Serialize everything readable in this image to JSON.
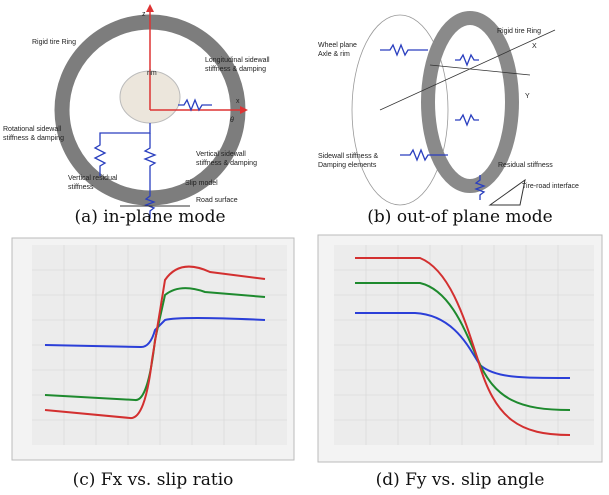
{
  "panels": [
    {
      "caption": "(a) in-plane mode",
      "labels": [
        [
          "z"
        ],
        [
          "x"
        ],
        [
          "θ"
        ],
        [
          "Rigid tire Ring"
        ],
        [
          "rim"
        ],
        [
          "Longitudinal sidewall",
          "stiffness & damping"
        ],
        [
          "Rotational sidewall",
          "stiffness & damping"
        ],
        [
          "Vertical sidewall",
          "stiffness & damping"
        ],
        [
          "Vertical residual",
          "stiffness"
        ],
        [
          "Slip model"
        ],
        [
          "Road surface"
        ]
      ]
    },
    {
      "caption": "(b) out-of plane mode",
      "labels": [
        [
          "Wheel plane",
          "Axle & rim"
        ],
        [
          "Rigid tire Ring"
        ],
        [
          "X"
        ],
        [
          "Y"
        ],
        [
          "Sidewall stiffness &",
          "Damping elements"
        ],
        [
          "Residual stiffness"
        ],
        [
          "Tire-road interface"
        ]
      ]
    },
    {
      "caption": "(c) Fx vs. slip ratio"
    },
    {
      "caption": "(d) Fy vs. slip angle"
    }
  ]
}
